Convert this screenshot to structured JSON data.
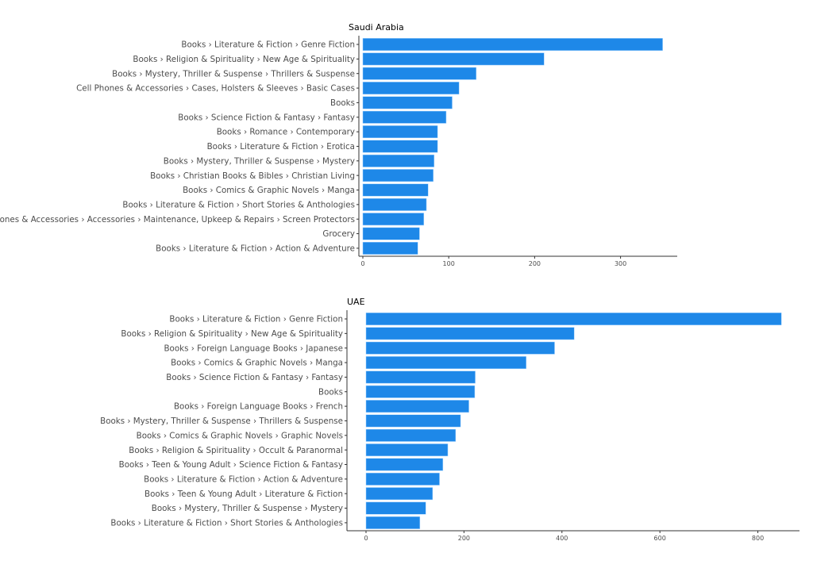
{
  "chart_data": [
    {
      "type": "bar",
      "orientation": "horizontal",
      "title": "Saudi Arabia",
      "xlabel": "",
      "ylabel": "",
      "xlim": [
        0,
        366
      ],
      "xticks": [
        0,
        100,
        200,
        300
      ],
      "grid": false,
      "color": "#1e88e8",
      "categories": [
        "Books › Literature & Fiction › Genre Fiction",
        "Books › Religion & Spirituality › New Age & Spirituality",
        "Books › Mystery, Thriller & Suspense › Thrillers & Suspense",
        "Cell Phones & Accessories › Cases, Holsters & Sleeves › Basic Cases",
        "Books",
        "Books › Science Fiction & Fantasy › Fantasy",
        "Books › Romance › Contemporary",
        "Books › Literature & Fiction › Erotica",
        "Books › Mystery, Thriller & Suspense › Mystery",
        "Books › Christian Books & Bibles › Christian Living",
        "Books › Comics & Graphic Novels › Manga",
        "Books › Literature & Fiction › Short Stories & Anthologies",
        "Cell Phones & Accessories › Accessories › Maintenance, Upkeep & Repairs › Screen Protectors",
        "Grocery",
        "Books › Literature & Fiction › Action & Adventure"
      ],
      "values": [
        349,
        211,
        132,
        112,
        104,
        97,
        87,
        87,
        83,
        82,
        76,
        74,
        71,
        66,
        64
      ]
    },
    {
      "type": "bar",
      "orientation": "horizontal",
      "title": "UAE",
      "xlabel": "",
      "ylabel": "",
      "xlim": [
        0,
        885
      ],
      "xticks": [
        0,
        200,
        400,
        600,
        800
      ],
      "grid": false,
      "color": "#1e88e8",
      "categories": [
        "Books › Literature & Fiction › Genre Fiction",
        "Books › Religion & Spirituality › New Age & Spirituality",
        "Books › Foreign Language Books › Japanese",
        "Books › Comics & Graphic Novels › Manga",
        "Books › Science Fiction & Fantasy › Fantasy",
        "Books",
        "Books › Foreign Language Books › French",
        "Books › Mystery, Thriller & Suspense › Thrillers & Suspense",
        "Books › Comics & Graphic Novels › Graphic Novels",
        "Books › Religion & Spirituality › Occult & Paranormal",
        "Books › Teen & Young Adult › Science Fiction & Fantasy",
        "Books › Literature & Fiction › Action & Adventure",
        "Books › Teen & Young Adult › Literature & Fiction",
        "Books › Mystery, Thriller & Suspense › Mystery",
        "Books › Literature & Fiction › Short Stories & Anthologies"
      ],
      "values": [
        848,
        425,
        385,
        327,
        223,
        222,
        210,
        193,
        183,
        167,
        157,
        150,
        136,
        122,
        110
      ]
    }
  ]
}
